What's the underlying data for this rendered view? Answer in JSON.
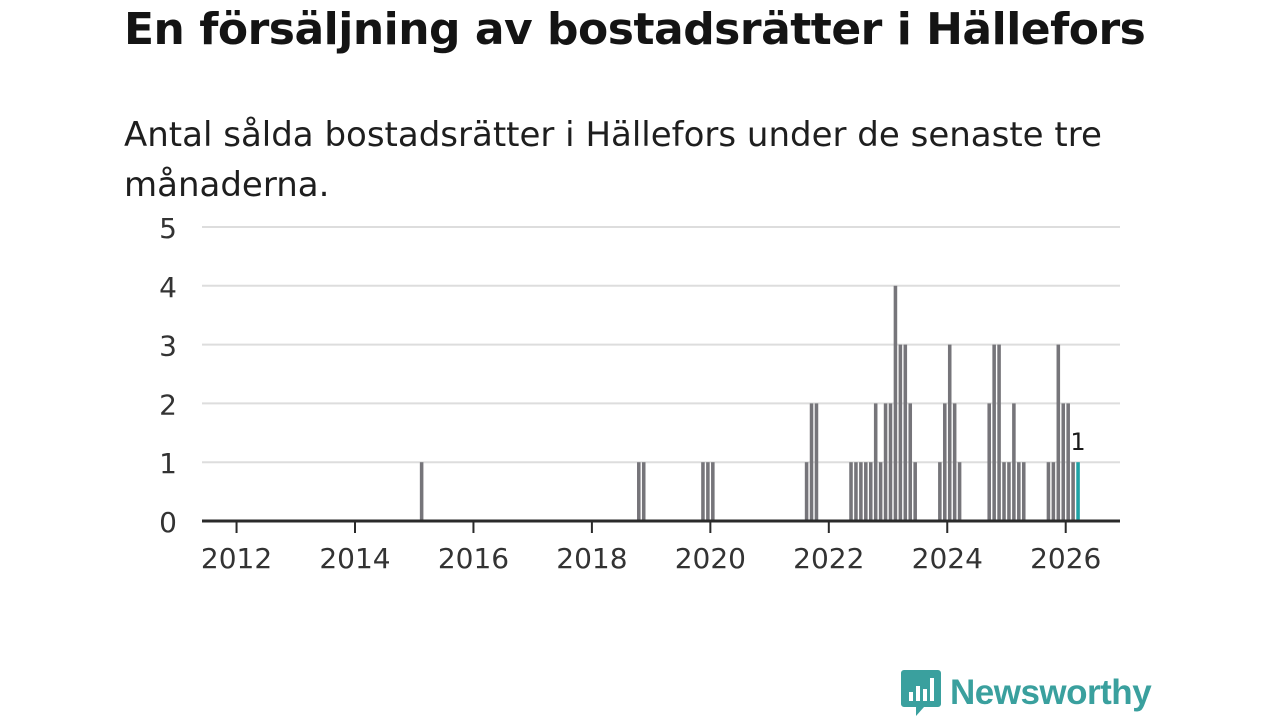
{
  "title": "En försäljning av bostadsrätter i Hällefors",
  "subtitle": "Antal sålda bostadsrätter i Hällefors under de senaste tre månaderna.",
  "brand": {
    "name": "Newsworthy",
    "color": "#3aa09e",
    "icon": "newsworthy-bar-chart-icon"
  },
  "colors": {
    "bar": "#76757a",
    "highlight": "#1fa3a6",
    "grid": "#dddddd",
    "axis": "#2a2a2a"
  },
  "chart_data": {
    "type": "bar",
    "x_unit": "month",
    "xlim": [
      "2011-06",
      "2026-12"
    ],
    "ylim": [
      0,
      5
    ],
    "y_ticks": [
      0,
      1,
      2,
      3,
      4,
      5
    ],
    "x_ticks": [
      "2012",
      "2014",
      "2016",
      "2018",
      "2020",
      "2022",
      "2024",
      "2026"
    ],
    "grid": true,
    "series": [
      {
        "points": [
          [
            "2015-02",
            1
          ],
          [
            "2018-10",
            1
          ],
          [
            "2018-11",
            1
          ],
          [
            "2019-11",
            1
          ],
          [
            "2019-12",
            1
          ],
          [
            "2020-01",
            1
          ],
          [
            "2021-08",
            1
          ],
          [
            "2021-09",
            2
          ],
          [
            "2021-10",
            2
          ],
          [
            "2022-05",
            1
          ],
          [
            "2022-06",
            1
          ],
          [
            "2022-07",
            1
          ],
          [
            "2022-08",
            1
          ],
          [
            "2022-09",
            1
          ],
          [
            "2022-10",
            2
          ],
          [
            "2022-11",
            1
          ],
          [
            "2022-12",
            2
          ],
          [
            "2023-01",
            2
          ],
          [
            "2023-02",
            4
          ],
          [
            "2023-03",
            3
          ],
          [
            "2023-04",
            3
          ],
          [
            "2023-05",
            2
          ],
          [
            "2023-06",
            1
          ],
          [
            "2023-11",
            1
          ],
          [
            "2023-12",
            2
          ],
          [
            "2024-01",
            3
          ],
          [
            "2024-02",
            2
          ],
          [
            "2024-03",
            1
          ],
          [
            "2024-09",
            2
          ],
          [
            "2024-10",
            3
          ],
          [
            "2024-11",
            3
          ],
          [
            "2024-12",
            1
          ],
          [
            "2025-01",
            1
          ],
          [
            "2025-02",
            2
          ],
          [
            "2025-03",
            1
          ],
          [
            "2025-04",
            1
          ],
          [
            "2025-09",
            1
          ],
          [
            "2025-10",
            1
          ],
          [
            "2025-11",
            3
          ],
          [
            "2025-12",
            2
          ],
          [
            "2026-01",
            2
          ],
          [
            "2026-02",
            1
          ],
          [
            "2026-03",
            1
          ]
        ]
      }
    ],
    "highlight": {
      "x": "2026-03",
      "value": 1,
      "label": "1"
    }
  }
}
